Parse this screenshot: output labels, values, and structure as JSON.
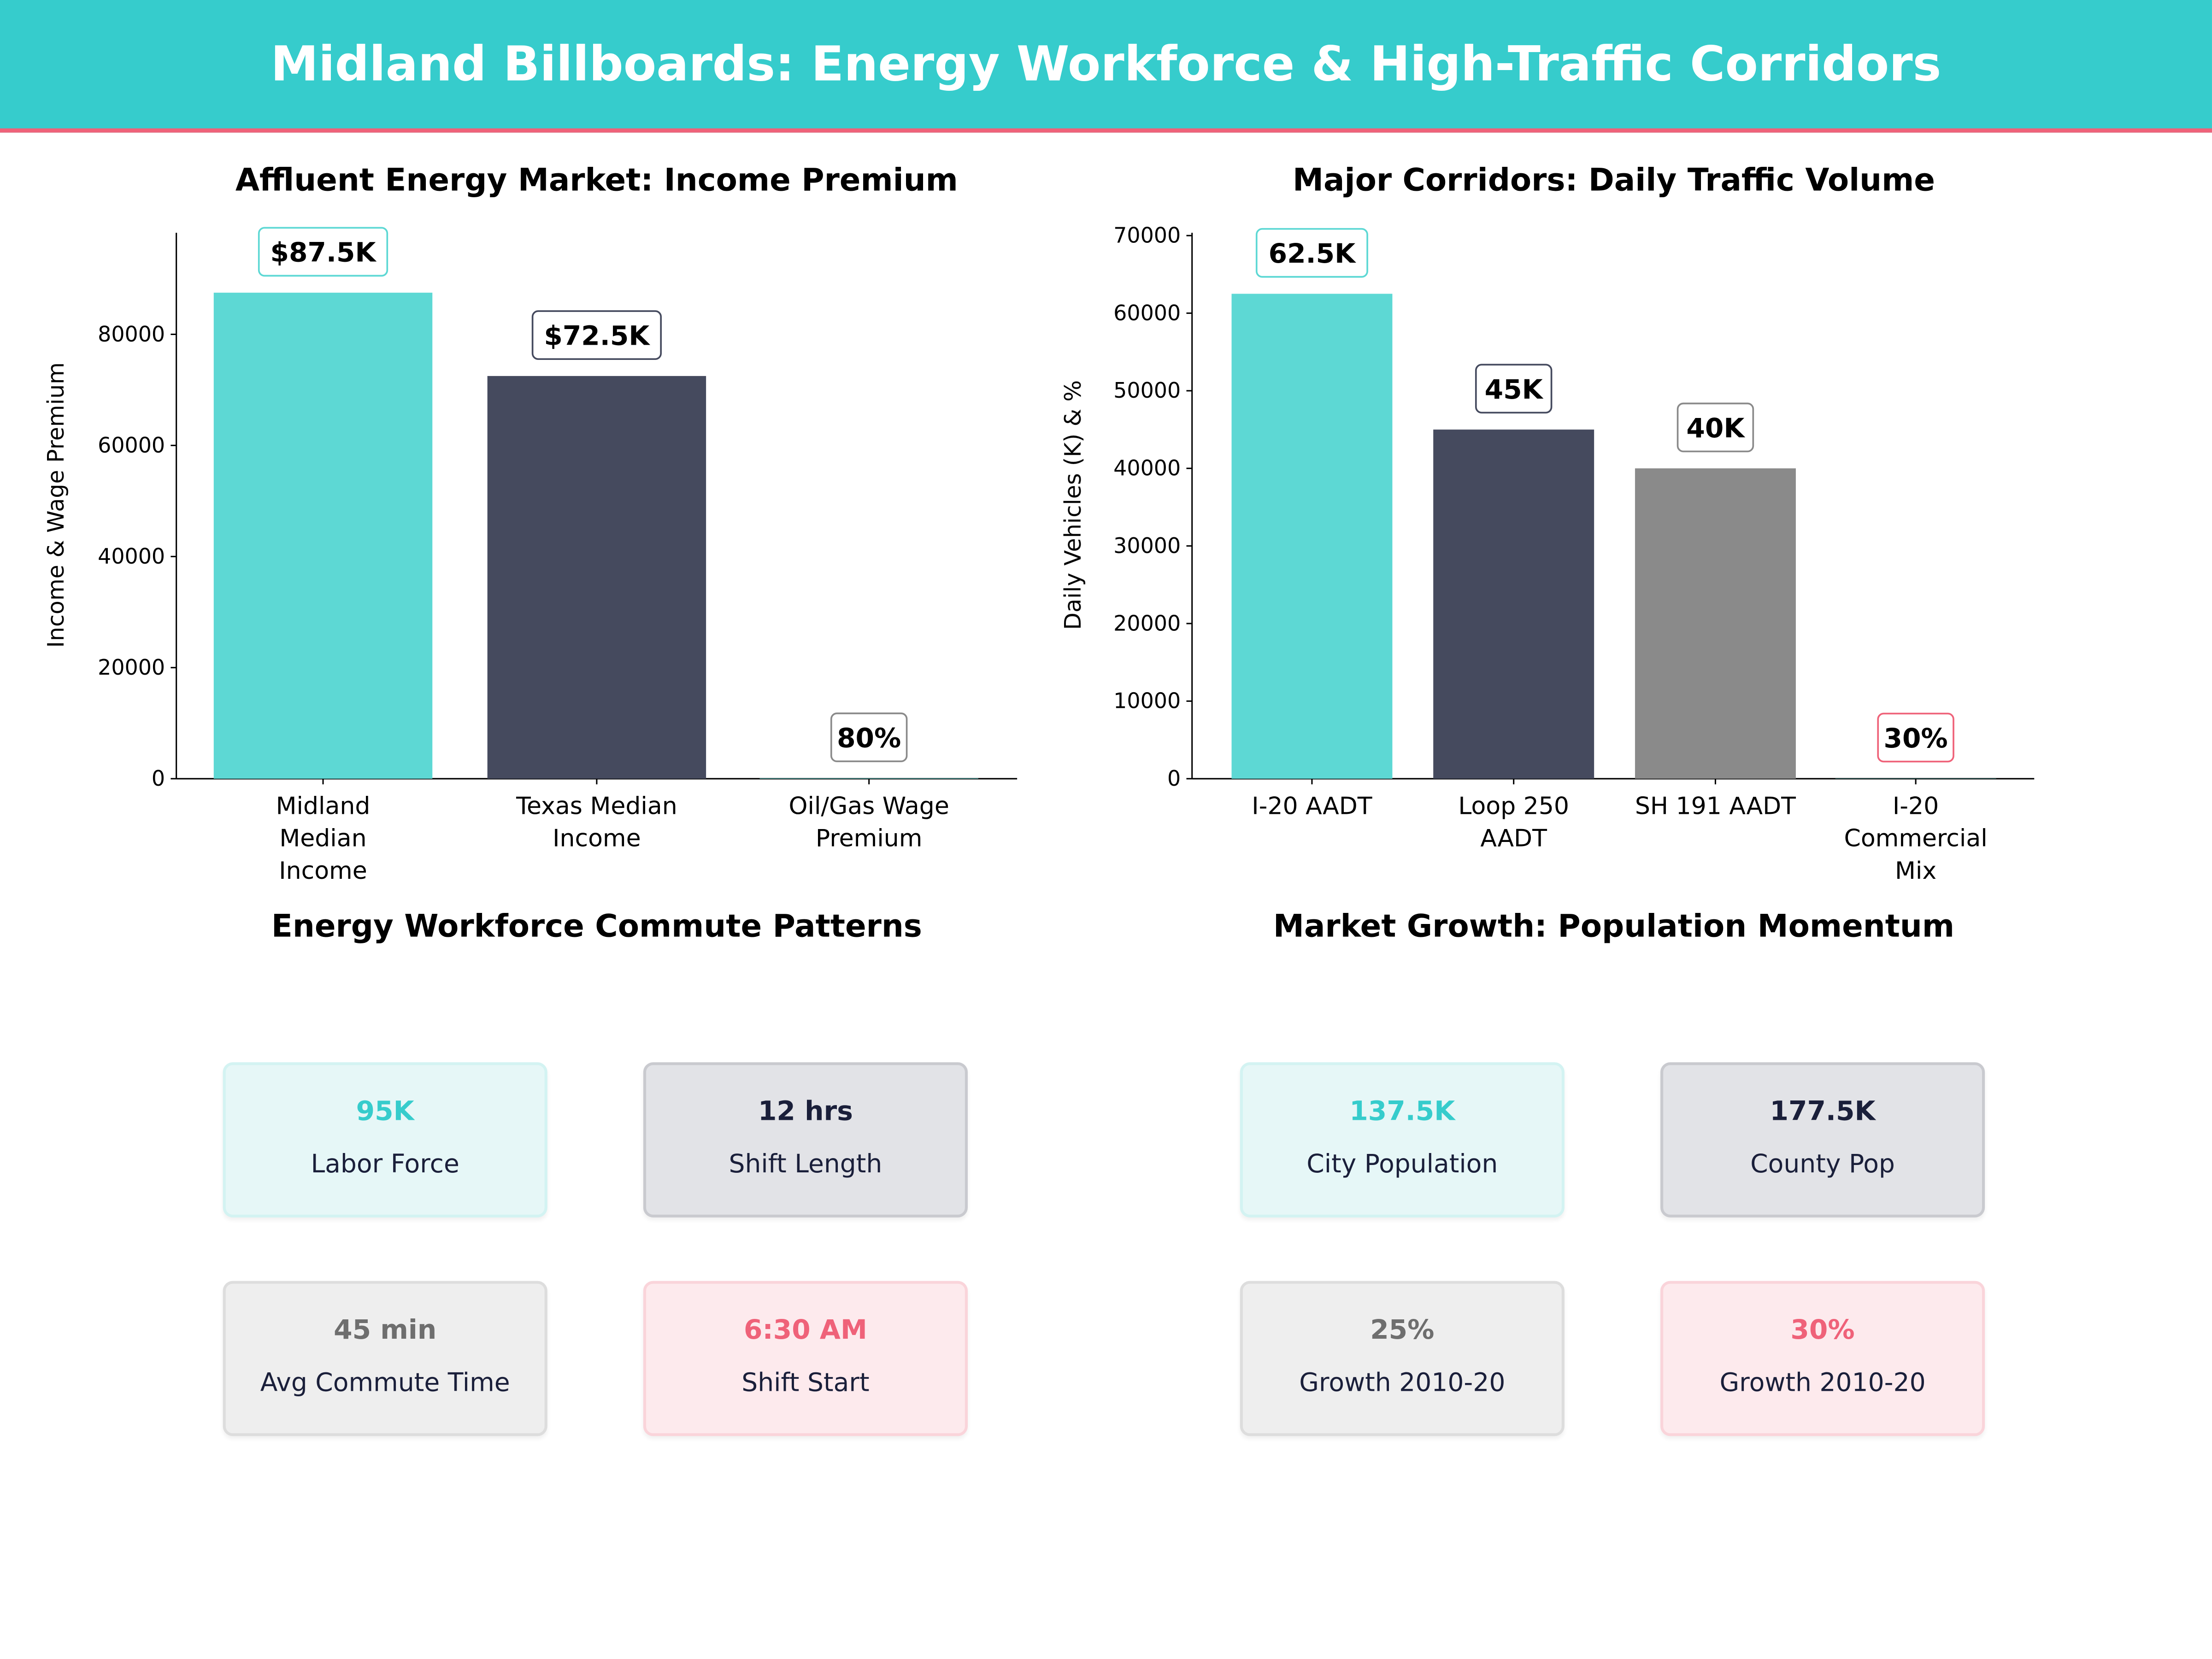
{
  "title": "Midland Billboards: Energy Workforce & High-Traffic Corridors",
  "colors": {
    "teal": "#5dd8d4",
    "dark": "#454a5e",
    "gray": "#8a8a8a",
    "pink": "#ef6279"
  },
  "chart_data": [
    {
      "type": "bar",
      "title": "Affluent Energy Market: Income Premium",
      "ylabel": "Income & Wage Premium",
      "xlabel": "",
      "categories": [
        "Midland\nMedian\nIncome",
        "Texas Median\nIncome",
        "Oil/Gas Wage\nPremium"
      ],
      "values": [
        87500,
        72500,
        80
      ],
      "data_labels": [
        "$87.5K",
        "$72.5K",
        "80%"
      ],
      "ylim": [
        0,
        98300
      ],
      "yticks": [
        0,
        20000,
        40000,
        60000,
        80000
      ],
      "grid": false
    },
    {
      "type": "bar",
      "title": "Major Corridors: Daily Traffic Volume",
      "ylabel": "Daily Vehicles (K) & %",
      "xlabel": "",
      "categories": [
        "I-20 AADT",
        "Loop 250\nAADT",
        "SH 191 AADT",
        "I-20\nCommercial\nMix"
      ],
      "values": [
        62500,
        45000,
        40000,
        30
      ],
      "data_labels": [
        "62.5K",
        "45K",
        "40K",
        "30%"
      ],
      "ylim": [
        0,
        70000
      ],
      "yticks": [
        0,
        10000,
        20000,
        30000,
        40000,
        50000,
        60000,
        70000
      ],
      "grid": false
    }
  ],
  "panels": [
    {
      "title": "Energy Workforce Commute Patterns",
      "cards": [
        {
          "value": "95K",
          "label": "Labor Force"
        },
        {
          "value": "12 hrs",
          "label": "Shift Length"
        },
        {
          "value": "45 min",
          "label": "Avg Commute Time"
        },
        {
          "value": "6:30 AM",
          "label": "Shift Start"
        }
      ]
    },
    {
      "title": "Market Growth: Population Momentum",
      "cards": [
        {
          "value": "137.5K",
          "label": "City Population"
        },
        {
          "value": "177.5K",
          "label": "County Pop"
        },
        {
          "value": "25%",
          "label": "Growth 2010-20"
        },
        {
          "value": "30%",
          "label": "Growth 2010-20"
        }
      ]
    }
  ]
}
